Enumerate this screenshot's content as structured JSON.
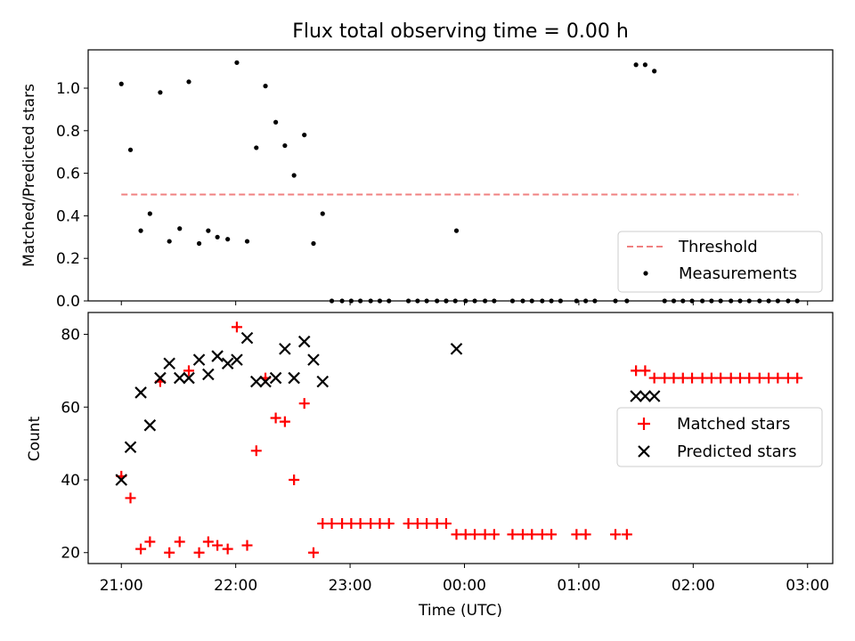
{
  "chart_data": {
    "title": "Flux total observing time = 0.00 h",
    "xlabel": "Time (UTC)",
    "x_tick_labels": [
      "21:00",
      "22:00",
      "23:00",
      "00:00",
      "01:00",
      "02:00",
      "03:00"
    ],
    "x_ticks_hours": [
      0,
      1,
      2,
      3,
      4,
      5,
      6
    ],
    "x_range_hours_after_2100": [
      -0.29,
      6.22
    ],
    "top": {
      "type": "scatter",
      "ylabel": "Matched/Predicted stars",
      "ylim": [
        0,
        1.18
      ],
      "y_ticks": [
        0.0,
        0.2,
        0.4,
        0.6,
        0.8,
        1.0
      ],
      "y_tick_labels": [
        "0.0",
        "0.2",
        "0.4",
        "0.6",
        "0.8",
        "1.0"
      ],
      "legend_position": "lower right",
      "legend": [
        "Threshold",
        "Measurements"
      ],
      "threshold": {
        "name": "Threshold",
        "value": 0.5,
        "x_from": 0.0,
        "x_to": 5.92,
        "color": "#f08080",
        "style": "dashed"
      },
      "measurements": {
        "name": "Measurements",
        "color": "#000000",
        "points": [
          [
            0.0,
            1.02
          ],
          [
            0.08,
            0.71
          ],
          [
            0.17,
            0.33
          ],
          [
            0.25,
            0.41
          ],
          [
            0.34,
            0.98
          ],
          [
            0.42,
            0.28
          ],
          [
            0.51,
            0.34
          ],
          [
            0.59,
            1.03
          ],
          [
            0.68,
            0.27
          ],
          [
            0.76,
            0.33
          ],
          [
            0.84,
            0.3
          ],
          [
            0.93,
            0.29
          ],
          [
            1.01,
            1.12
          ],
          [
            1.1,
            0.28
          ],
          [
            1.18,
            0.72
          ],
          [
            1.26,
            1.01
          ],
          [
            1.35,
            0.84
          ],
          [
            1.43,
            0.73
          ],
          [
            1.51,
            0.59
          ],
          [
            1.6,
            0.78
          ],
          [
            1.68,
            0.27
          ],
          [
            1.76,
            0.41
          ],
          [
            1.84,
            0.0
          ],
          [
            1.93,
            0.0
          ],
          [
            2.01,
            0.0
          ],
          [
            2.09,
            0.0
          ],
          [
            2.18,
            0.0
          ],
          [
            2.26,
            0.0
          ],
          [
            2.34,
            0.0
          ],
          [
            2.51,
            0.0
          ],
          [
            2.59,
            0.0
          ],
          [
            2.67,
            0.0
          ],
          [
            2.76,
            0.0
          ],
          [
            2.84,
            0.0
          ],
          [
            2.92,
            0.0
          ],
          [
            2.84,
            0.0
          ],
          [
            2.93,
            0.33
          ],
          [
            3.01,
            0.0
          ],
          [
            3.09,
            0.0
          ],
          [
            3.18,
            0.0
          ],
          [
            3.26,
            0.0
          ],
          [
            3.42,
            0.0
          ],
          [
            3.51,
            0.0
          ],
          [
            3.59,
            0.0
          ],
          [
            3.68,
            0.0
          ],
          [
            3.76,
            0.0
          ],
          [
            3.84,
            0.0
          ],
          [
            3.98,
            0.0
          ],
          [
            4.06,
            0.0
          ],
          [
            4.14,
            0.0
          ],
          [
            4.32,
            0.0
          ],
          [
            4.42,
            0.0
          ],
          [
            4.5,
            1.11
          ],
          [
            4.58,
            1.11
          ],
          [
            4.66,
            1.08
          ],
          [
            4.75,
            0.0
          ],
          [
            4.83,
            0.0
          ],
          [
            4.91,
            0.0
          ],
          [
            4.99,
            0.0
          ],
          [
            5.08,
            0.0
          ],
          [
            5.16,
            0.0
          ],
          [
            5.24,
            0.0
          ],
          [
            5.33,
            0.0
          ],
          [
            5.41,
            0.0
          ],
          [
            5.49,
            0.0
          ],
          [
            5.58,
            0.0
          ],
          [
            5.66,
            0.0
          ],
          [
            5.74,
            0.0
          ],
          [
            5.83,
            0.0
          ],
          [
            5.91,
            0.0
          ]
        ]
      }
    },
    "bottom": {
      "type": "scatter",
      "ylabel": "Count",
      "ylim": [
        17,
        86
      ],
      "y_ticks": [
        20,
        40,
        60,
        80
      ],
      "y_tick_labels": [
        "20",
        "40",
        "60",
        "80"
      ],
      "legend_position": "center right",
      "legend": [
        "Matched stars",
        "Predicted stars"
      ],
      "matched": {
        "name": "Matched stars",
        "marker": "plus",
        "color": "#ff0000",
        "points": [
          [
            0.0,
            41
          ],
          [
            0.08,
            35
          ],
          [
            0.17,
            21
          ],
          [
            0.25,
            23
          ],
          [
            0.34,
            67
          ],
          [
            0.42,
            20
          ],
          [
            0.51,
            23
          ],
          [
            0.59,
            70
          ],
          [
            0.68,
            20
          ],
          [
            0.76,
            23
          ],
          [
            0.84,
            22
          ],
          [
            0.93,
            21
          ],
          [
            1.01,
            82
          ],
          [
            1.1,
            22
          ],
          [
            1.18,
            48
          ],
          [
            1.26,
            68
          ],
          [
            1.35,
            57
          ],
          [
            1.43,
            56
          ],
          [
            1.51,
            40
          ],
          [
            1.6,
            61
          ],
          [
            1.68,
            20
          ],
          [
            1.76,
            28
          ],
          [
            1.84,
            28
          ],
          [
            1.93,
            28
          ],
          [
            2.01,
            28
          ],
          [
            2.09,
            28
          ],
          [
            2.18,
            28
          ],
          [
            2.26,
            28
          ],
          [
            2.34,
            28
          ],
          [
            2.51,
            28
          ],
          [
            2.59,
            28
          ],
          [
            2.67,
            28
          ],
          [
            2.76,
            28
          ],
          [
            2.84,
            28
          ],
          [
            2.93,
            25
          ],
          [
            3.01,
            25
          ],
          [
            3.09,
            25
          ],
          [
            3.18,
            25
          ],
          [
            3.26,
            25
          ],
          [
            3.42,
            25
          ],
          [
            3.51,
            25
          ],
          [
            3.59,
            25
          ],
          [
            3.68,
            25
          ],
          [
            3.76,
            25
          ],
          [
            3.98,
            25
          ],
          [
            4.06,
            25
          ],
          [
            4.32,
            25
          ],
          [
            4.42,
            25
          ],
          [
            4.5,
            70
          ],
          [
            4.58,
            70
          ],
          [
            4.66,
            68
          ],
          [
            4.75,
            68
          ],
          [
            4.83,
            68
          ],
          [
            4.91,
            68
          ],
          [
            4.99,
            68
          ],
          [
            5.08,
            68
          ],
          [
            5.16,
            68
          ],
          [
            5.24,
            68
          ],
          [
            5.33,
            68
          ],
          [
            5.41,
            68
          ],
          [
            5.49,
            68
          ],
          [
            5.58,
            68
          ],
          [
            5.66,
            68
          ],
          [
            5.74,
            68
          ],
          [
            5.83,
            68
          ],
          [
            5.91,
            68
          ]
        ]
      },
      "predicted": {
        "name": "Predicted stars",
        "marker": "x",
        "color": "#000000",
        "points": [
          [
            0.0,
            40
          ],
          [
            0.08,
            49
          ],
          [
            0.17,
            64
          ],
          [
            0.25,
            55
          ],
          [
            0.34,
            68
          ],
          [
            0.42,
            72
          ],
          [
            0.51,
            68
          ],
          [
            0.59,
            68
          ],
          [
            0.68,
            73
          ],
          [
            0.76,
            69
          ],
          [
            0.84,
            74
          ],
          [
            0.93,
            72
          ],
          [
            1.01,
            73
          ],
          [
            1.1,
            79
          ],
          [
            1.18,
            67
          ],
          [
            1.26,
            67
          ],
          [
            1.35,
            68
          ],
          [
            1.43,
            76
          ],
          [
            1.51,
            68
          ],
          [
            1.6,
            78
          ],
          [
            1.68,
            73
          ],
          [
            1.76,
            67
          ],
          [
            2.93,
            76
          ],
          [
            4.5,
            63
          ],
          [
            4.58,
            63
          ],
          [
            4.66,
            63
          ]
        ]
      }
    }
  }
}
